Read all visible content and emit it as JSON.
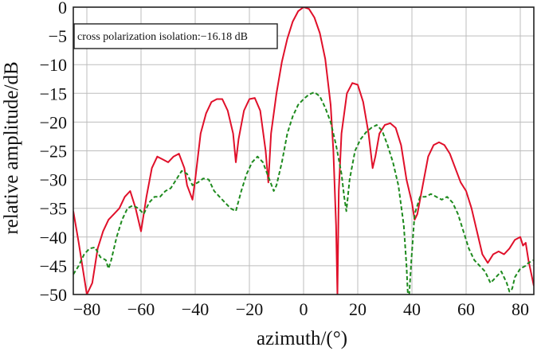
{
  "chart_data": {
    "type": "line",
    "xlabel": "azimuth/(°)",
    "ylabel": "relative amplitude/dB",
    "xlim": [
      -85,
      85
    ],
    "ylim": [
      -50,
      0
    ],
    "xticks": [
      -80,
      -60,
      -40,
      -20,
      0,
      20,
      40,
      60,
      80
    ],
    "yticks": [
      0,
      -5,
      -10,
      -15,
      -20,
      -25,
      -30,
      -35,
      -40,
      -45,
      -50
    ],
    "grid": true,
    "annotation": "cross polarization isolation:−16.18 dB",
    "series": [
      {
        "color": "#e0102a",
        "style": "solid",
        "points": [
          [
            -85,
            -35.5
          ],
          [
            -83,
            -41
          ],
          [
            -81,
            -47
          ],
          [
            -80,
            -50
          ],
          [
            -78,
            -48
          ],
          [
            -76,
            -42
          ],
          [
            -74,
            -39
          ],
          [
            -72,
            -37
          ],
          [
            -70,
            -36
          ],
          [
            -68,
            -35
          ],
          [
            -66,
            -33
          ],
          [
            -64,
            -32
          ],
          [
            -62,
            -35
          ],
          [
            -60,
            -39
          ],
          [
            -58,
            -33
          ],
          [
            -56,
            -28
          ],
          [
            -54,
            -26
          ],
          [
            -52,
            -26.5
          ],
          [
            -50,
            -27
          ],
          [
            -48,
            -26
          ],
          [
            -46,
            -25.5
          ],
          [
            -44,
            -28
          ],
          [
            -43,
            -31
          ],
          [
            -41,
            -33.5
          ],
          [
            -40,
            -30
          ],
          [
            -38,
            -22
          ],
          [
            -36,
            -18.5
          ],
          [
            -34,
            -16.5
          ],
          [
            -32,
            -16
          ],
          [
            -30,
            -16
          ],
          [
            -28,
            -18
          ],
          [
            -26,
            -22
          ],
          [
            -25,
            -27
          ],
          [
            -24,
            -23
          ],
          [
            -22,
            -18
          ],
          [
            -20,
            -16
          ],
          [
            -18,
            -15.8
          ],
          [
            -16,
            -18
          ],
          [
            -14,
            -25
          ],
          [
            -13,
            -30.5
          ],
          [
            -12,
            -22
          ],
          [
            -10,
            -15
          ],
          [
            -8,
            -9.5
          ],
          [
            -6,
            -5.5
          ],
          [
            -4,
            -2.5
          ],
          [
            -2,
            -0.7
          ],
          [
            0,
            0
          ],
          [
            2,
            -0.3
          ],
          [
            4,
            -1.8
          ],
          [
            6,
            -4.5
          ],
          [
            8,
            -9
          ],
          [
            10,
            -17
          ],
          [
            11,
            -25
          ],
          [
            12,
            -38
          ],
          [
            12.5,
            -50
          ],
          [
            13,
            -32
          ],
          [
            14,
            -22
          ],
          [
            16,
            -15
          ],
          [
            18,
            -13.2
          ],
          [
            20,
            -13.5
          ],
          [
            22,
            -16.5
          ],
          [
            24,
            -22
          ],
          [
            25.5,
            -28
          ],
          [
            26.5,
            -26
          ],
          [
            28,
            -22
          ],
          [
            30,
            -20.5
          ],
          [
            32,
            -20.2
          ],
          [
            34,
            -21
          ],
          [
            36,
            -24
          ],
          [
            38,
            -30
          ],
          [
            40,
            -34
          ],
          [
            41,
            -37
          ],
          [
            42,
            -36
          ],
          [
            44,
            -31
          ],
          [
            46,
            -26
          ],
          [
            48,
            -24
          ],
          [
            50,
            -23.5
          ],
          [
            52,
            -24
          ],
          [
            54,
            -25.5
          ],
          [
            56,
            -28
          ],
          [
            58,
            -30.5
          ],
          [
            60,
            -32
          ],
          [
            62,
            -35
          ],
          [
            64,
            -39
          ],
          [
            66,
            -43
          ],
          [
            68,
            -44.5
          ],
          [
            70,
            -43
          ],
          [
            72,
            -42.5
          ],
          [
            74,
            -43
          ],
          [
            76,
            -42
          ],
          [
            78,
            -40.5
          ],
          [
            80,
            -40
          ],
          [
            81,
            -41.5
          ],
          [
            82,
            -41
          ],
          [
            83,
            -44
          ],
          [
            85,
            -48.5
          ]
        ]
      },
      {
        "color": "#1e8a1e",
        "style": "dashed",
        "points": [
          [
            -85,
            -46.5
          ],
          [
            -83,
            -45
          ],
          [
            -81,
            -43
          ],
          [
            -79,
            -42
          ],
          [
            -77,
            -41.8
          ],
          [
            -75,
            -43.5
          ],
          [
            -73,
            -44
          ],
          [
            -72,
            -45.5
          ],
          [
            -71,
            -44
          ],
          [
            -69,
            -40
          ],
          [
            -67,
            -37
          ],
          [
            -65,
            -35
          ],
          [
            -63,
            -34.5
          ],
          [
            -61,
            -35
          ],
          [
            -59,
            -36
          ],
          [
            -57,
            -34
          ],
          [
            -55,
            -33
          ],
          [
            -53,
            -33
          ],
          [
            -51,
            -32
          ],
          [
            -49,
            -31.5
          ],
          [
            -47,
            -30
          ],
          [
            -45,
            -28.5
          ],
          [
            -43,
            -29
          ],
          [
            -41,
            -31
          ],
          [
            -39,
            -30.5
          ],
          [
            -37,
            -29.8
          ],
          [
            -35,
            -30
          ],
          [
            -33,
            -32
          ],
          [
            -31,
            -33
          ],
          [
            -29,
            -34
          ],
          [
            -27,
            -35
          ],
          [
            -25,
            -35.5
          ],
          [
            -23,
            -32
          ],
          [
            -21,
            -29
          ],
          [
            -19,
            -27
          ],
          [
            -17,
            -26
          ],
          [
            -15,
            -27
          ],
          [
            -13,
            -29.5
          ],
          [
            -11,
            -32
          ],
          [
            -10,
            -31
          ],
          [
            -8,
            -27
          ],
          [
            -6,
            -22
          ],
          [
            -4,
            -19
          ],
          [
            -2,
            -17
          ],
          [
            0,
            -16
          ],
          [
            2,
            -15.2
          ],
          [
            4,
            -14.8
          ],
          [
            6,
            -15.5
          ],
          [
            8,
            -17.5
          ],
          [
            10,
            -20
          ],
          [
            12,
            -24
          ],
          [
            14,
            -29
          ],
          [
            15,
            -33
          ],
          [
            15.8,
            -35.5
          ],
          [
            17,
            -30
          ],
          [
            19,
            -25
          ],
          [
            21,
            -23
          ],
          [
            23,
            -21.8
          ],
          [
            25,
            -21
          ],
          [
            27,
            -20.5
          ],
          [
            29,
            -21.5
          ],
          [
            31,
            -24
          ],
          [
            33,
            -27
          ],
          [
            35,
            -31
          ],
          [
            37,
            -38
          ],
          [
            38,
            -45
          ],
          [
            38.5,
            -50
          ],
          [
            39,
            -50
          ],
          [
            39.8,
            -44
          ],
          [
            41,
            -36
          ],
          [
            43,
            -33
          ],
          [
            45,
            -33
          ],
          [
            47,
            -32.5
          ],
          [
            49,
            -33
          ],
          [
            51,
            -33.5
          ],
          [
            53,
            -33
          ],
          [
            55,
            -34
          ],
          [
            57,
            -36
          ],
          [
            59,
            -39
          ],
          [
            61,
            -42
          ],
          [
            63,
            -44
          ],
          [
            65,
            -45
          ],
          [
            67,
            -46
          ],
          [
            69,
            -48
          ],
          [
            71,
            -47
          ],
          [
            73,
            -46
          ],
          [
            75,
            -48
          ],
          [
            76,
            -49.5
          ],
          [
            77,
            -49
          ],
          [
            78,
            -47
          ],
          [
            80,
            -45.5
          ],
          [
            82,
            -45
          ],
          [
            83,
            -44.5
          ],
          [
            85,
            -44
          ]
        ]
      }
    ]
  }
}
